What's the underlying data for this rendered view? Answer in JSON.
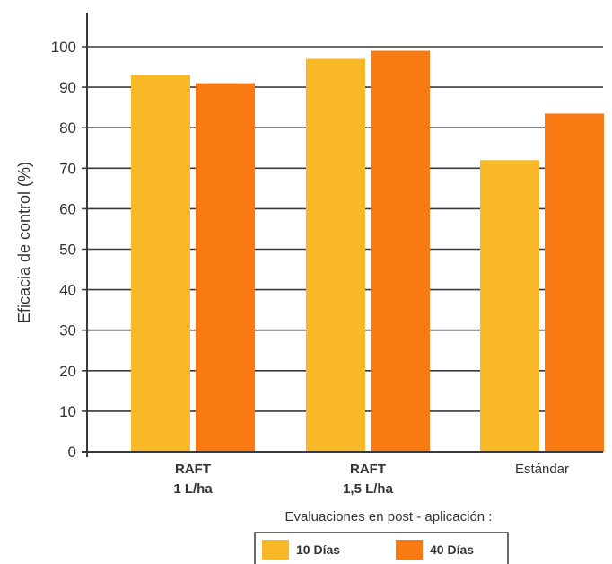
{
  "chart_data": {
    "type": "bar",
    "ylabel": "Eficacia de control (%)",
    "ylim": [
      0,
      100
    ],
    "yticks": [
      0,
      10,
      20,
      30,
      40,
      50,
      60,
      70,
      80,
      90,
      100
    ],
    "grid": true,
    "categories": [
      {
        "lines": [
          "RAFT",
          "1 L/ha"
        ],
        "bold": true
      },
      {
        "lines": [
          "RAFT",
          "1,5 L/ha"
        ],
        "bold": true
      },
      {
        "lines": [
          "Estándar"
        ],
        "bold": false
      }
    ],
    "series": [
      {
        "name": "10 Días",
        "color": "#F9B825",
        "values": [
          93,
          97,
          72
        ]
      },
      {
        "name": "40 Días",
        "color": "#F97A12",
        "values": [
          91,
          99,
          83.5
        ]
      }
    ],
    "note": "Evaluaciones en post - aplicación :",
    "legend": "bottom"
  }
}
